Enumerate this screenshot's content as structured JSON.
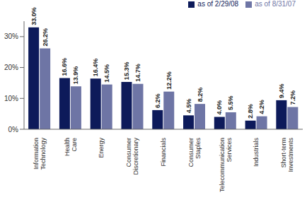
{
  "chart_data": {
    "type": "bar",
    "categories": [
      "Information Technology",
      "Health Care",
      "Energy",
      "Consumer Discretionary",
      "Financials",
      "Consumer Staples",
      "Telecommunication Services",
      "Industrials",
      "Short-term Investments"
    ],
    "series": [
      {
        "name": "as of 2/29/08",
        "color": "#0d1a5a",
        "values": [
          33.0,
          16.6,
          16.4,
          15.3,
          6.2,
          4.5,
          4.0,
          2.8,
          9.4
        ],
        "value_labels": [
          "33.0%",
          "16.6%",
          "16.4%",
          "15.3%",
          "6.2%",
          "4.5%",
          "4.0%",
          "2.8%",
          "9.4%"
        ]
      },
      {
        "name": "as of 8/31/07",
        "color": "#6e75a5",
        "values": [
          26.2,
          13.9,
          14.5,
          14.7,
          12.2,
          8.2,
          5.5,
          4.2,
          7.2
        ],
        "value_labels": [
          "26.2%",
          "13.9%",
          "14.5%",
          "14.7%",
          "12.2%",
          "8.2%",
          "5.5%",
          "4.2%",
          "7.2%"
        ]
      }
    ],
    "ylim": [
      0,
      35
    ],
    "yticks": [
      {
        "value": 0,
        "label": "0%"
      },
      {
        "value": 10,
        "label": "10%"
      },
      {
        "value": 20,
        "label": "20%"
      },
      {
        "value": 30,
        "label": "30%"
      }
    ],
    "grid": false,
    "legend": "upper right",
    "data_labels": true
  }
}
